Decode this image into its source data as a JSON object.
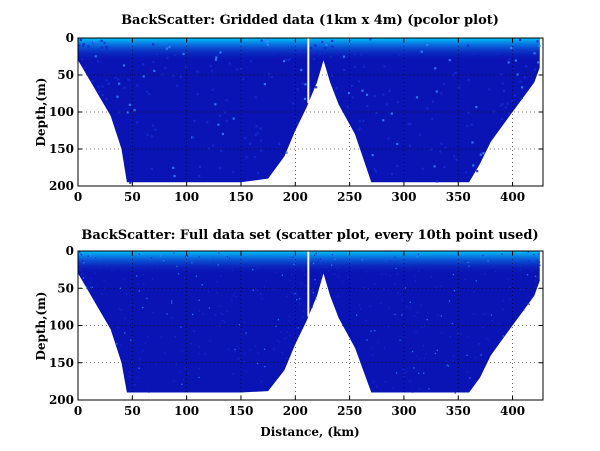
{
  "chart_data": [
    {
      "type": "heatmap",
      "title": "BackScatter: Gridded data (1km x 4m) (pcolor plot)",
      "xlabel": "",
      "ylabel": "Depth,(m)",
      "xlim": [
        0,
        428
      ],
      "ylim": [
        200,
        0
      ],
      "y_reversed": true,
      "xticks": [
        0,
        50,
        100,
        150,
        200,
        250,
        300,
        350,
        400
      ],
      "yticks": [
        0,
        50,
        100,
        150,
        200
      ],
      "grid": true,
      "colormap": "jet",
      "bottom_depth": {
        "x": [
          0,
          10,
          20,
          30,
          40,
          45,
          50,
          100,
          150,
          175,
          190,
          200,
          210,
          220,
          226,
          232,
          240,
          255,
          270,
          290,
          320,
          360,
          370,
          380,
          395,
          410,
          420,
          425
        ],
        "y": [
          30,
          55,
          80,
          105,
          150,
          195,
          195,
          195,
          195,
          190,
          160,
          125,
          95,
          60,
          30,
          60,
          90,
          130,
          195,
          195,
          195,
          195,
          170,
          140,
          110,
          80,
          60,
          40
        ]
      },
      "gaps": [
        212
      ]
    },
    {
      "type": "scatter",
      "title": "BackScatter: Full data set (scatter plot, every 10th point used)",
      "xlabel": "Distance, (km)",
      "ylabel": "Depth,(m)",
      "xlim": [
        0,
        428
      ],
      "ylim": [
        200,
        0
      ],
      "y_reversed": true,
      "xticks": [
        0,
        50,
        100,
        150,
        200,
        250,
        300,
        350,
        400
      ],
      "yticks": [
        0,
        50,
        100,
        150,
        200
      ],
      "grid": true,
      "colormap": "jet",
      "bottom_depth": {
        "x": [
          0,
          10,
          20,
          30,
          40,
          45,
          50,
          100,
          150,
          175,
          190,
          200,
          210,
          220,
          226,
          232,
          240,
          255,
          270,
          290,
          320,
          360,
          370,
          380,
          395,
          410,
          420,
          425
        ],
        "y": [
          30,
          55,
          80,
          105,
          150,
          190,
          190,
          190,
          190,
          188,
          160,
          125,
          95,
          60,
          30,
          60,
          90,
          130,
          190,
          190,
          190,
          190,
          170,
          140,
          110,
          80,
          60,
          40
        ]
      },
      "gaps": [
        212
      ]
    }
  ],
  "colors": {
    "deep_blue": "#0a14b4",
    "mid_blue": "#1428d2",
    "surface_cyan": "#00c8ff",
    "axis": "#000000"
  }
}
